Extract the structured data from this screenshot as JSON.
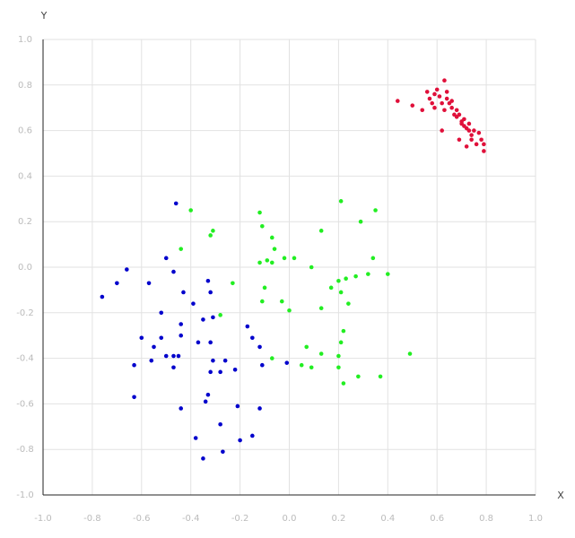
{
  "chart_data": {
    "type": "scatter",
    "x_label": "X",
    "y_label": "Y",
    "xlim": [
      -1,
      1
    ],
    "ylim": [
      -1,
      1
    ],
    "xticks": [
      {
        "value": -1,
        "label": "-1.0"
      },
      -0.8,
      -0.6,
      -0.4,
      -0.2,
      {
        "value": 0,
        "label": "0.0"
      },
      0.2,
      0.4,
      0.6,
      0.8,
      {
        "value": 1,
        "label": "1.0"
      }
    ],
    "yticks": [
      {
        "value": -1,
        "label": "-1.0"
      },
      -0.8,
      -0.6,
      -0.4,
      -0.2,
      {
        "value": 0,
        "label": "0.0"
      },
      0.2,
      0.4,
      0.6,
      0.8,
      {
        "value": 1,
        "label": "1.0"
      }
    ],
    "grid": true,
    "series": [
      {
        "color": "#e0103a",
        "x": [
          0.44,
          0.5,
          0.54,
          0.56,
          0.57,
          0.58,
          0.59,
          0.6,
          0.61,
          0.62,
          0.63,
          0.63,
          0.64,
          0.65,
          0.66,
          0.66,
          0.67,
          0.68,
          0.68,
          0.69,
          0.7,
          0.7,
          0.71,
          0.71,
          0.72,
          0.73,
          0.74,
          0.74,
          0.75,
          0.76,
          0.73,
          0.77,
          0.78,
          0.79,
          0.79,
          0.62,
          0.69,
          0.72,
          0.59,
          0.64
        ],
        "values": [
          0.73,
          0.71,
          0.69,
          0.77,
          0.74,
          0.72,
          0.7,
          0.78,
          0.75,
          0.72,
          0.69,
          0.82,
          0.74,
          0.72,
          0.73,
          0.7,
          0.67,
          0.66,
          0.69,
          0.67,
          0.64,
          0.63,
          0.62,
          0.65,
          0.61,
          0.6,
          0.58,
          0.56,
          0.6,
          0.54,
          0.63,
          0.59,
          0.56,
          0.54,
          0.51,
          0.6,
          0.56,
          0.53,
          0.76,
          0.77
        ]
      },
      {
        "color": "#22ee22",
        "x": [
          -0.4,
          -0.12,
          0.21,
          0.35,
          0.29,
          -0.11,
          -0.31,
          -0.32,
          0.13,
          -0.07,
          -0.06,
          -0.44,
          -0.12,
          -0.09,
          -0.07,
          -0.02,
          0.02,
          0.09,
          0.34,
          0.4,
          0.32,
          0.27,
          0.23,
          0.2,
          0.17,
          0.21,
          -0.23,
          -0.1,
          -0.11,
          -0.03,
          0.0,
          0.13,
          0.24,
          -0.28,
          0.22,
          0.21,
          0.07,
          0.13,
          0.2,
          0.49,
          -0.07,
          0.05,
          0.09,
          0.2,
          0.28,
          0.37,
          0.22
        ],
        "values": [
          0.25,
          0.24,
          0.29,
          0.25,
          0.2,
          0.18,
          0.16,
          0.14,
          0.16,
          0.13,
          0.08,
          0.08,
          0.02,
          0.03,
          0.02,
          0.04,
          0.04,
          0.0,
          0.04,
          -0.03,
          -0.03,
          -0.04,
          -0.05,
          -0.06,
          -0.09,
          -0.11,
          -0.07,
          -0.09,
          -0.15,
          -0.15,
          -0.19,
          -0.18,
          -0.16,
          -0.21,
          -0.28,
          -0.33,
          -0.35,
          -0.38,
          -0.39,
          -0.38,
          -0.4,
          -0.43,
          -0.44,
          -0.44,
          -0.48,
          -0.48,
          -0.51
        ]
      },
      {
        "color": "#0000cc",
        "x": [
          -0.46,
          -0.66,
          -0.7,
          -0.76,
          -0.5,
          -0.47,
          -0.57,
          -0.43,
          -0.33,
          -0.32,
          -0.39,
          -0.52,
          -0.35,
          -0.31,
          -0.44,
          -0.17,
          -0.6,
          -0.52,
          -0.44,
          -0.15,
          -0.55,
          -0.37,
          -0.32,
          -0.12,
          -0.5,
          -0.47,
          -0.45,
          -0.56,
          -0.31,
          -0.26,
          -0.63,
          -0.47,
          -0.32,
          -0.28,
          -0.22,
          -0.11,
          -0.01,
          -0.63,
          -0.33,
          -0.34,
          -0.44,
          -0.21,
          -0.12,
          -0.28,
          -0.38,
          -0.15,
          -0.2,
          -0.27,
          -0.35
        ],
        "values": [
          0.28,
          -0.01,
          -0.07,
          -0.13,
          0.04,
          -0.02,
          -0.07,
          -0.11,
          -0.06,
          -0.11,
          -0.16,
          -0.2,
          -0.23,
          -0.22,
          -0.25,
          -0.26,
          -0.31,
          -0.31,
          -0.3,
          -0.31,
          -0.35,
          -0.33,
          -0.33,
          -0.35,
          -0.39,
          -0.39,
          -0.39,
          -0.41,
          -0.41,
          -0.41,
          -0.43,
          -0.44,
          -0.46,
          -0.46,
          -0.45,
          -0.43,
          -0.42,
          -0.57,
          -0.56,
          -0.59,
          -0.62,
          -0.61,
          -0.62,
          -0.69,
          -0.75,
          -0.74,
          -0.76,
          -0.81,
          -0.84
        ]
      }
    ]
  }
}
